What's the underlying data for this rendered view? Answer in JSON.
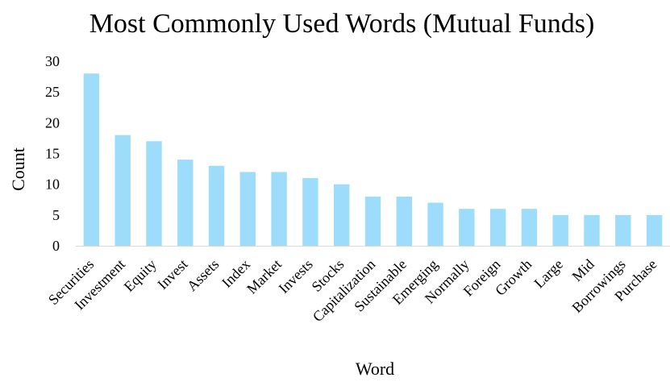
{
  "chart_data": {
    "type": "bar",
    "title": "Most Commonly Used Words (Mutual Funds)",
    "xlabel": "Word",
    "ylabel": "Count",
    "categories": [
      "Securities",
      "Investment",
      "Equity",
      "Invest",
      "Assets",
      "Index",
      "Market",
      "Invests",
      "Stocks",
      "Capitalization",
      "Sustainable",
      "Emerging",
      "Normally",
      "Foreign",
      "Growth",
      "Large",
      "Mid",
      "Borrowings",
      "Purchase"
    ],
    "values": [
      28,
      18,
      17,
      14,
      13,
      12,
      12,
      11,
      10,
      8,
      8,
      7,
      6,
      6,
      6,
      5,
      5,
      5,
      5
    ],
    "ylim": [
      0,
      30
    ],
    "yticks": [
      "0",
      "5",
      "10",
      "15",
      "20",
      "25",
      "30"
    ],
    "grid": false,
    "legend": "none",
    "bar_color": "#9ddcfb",
    "axis_color": "#d9d9d9"
  }
}
